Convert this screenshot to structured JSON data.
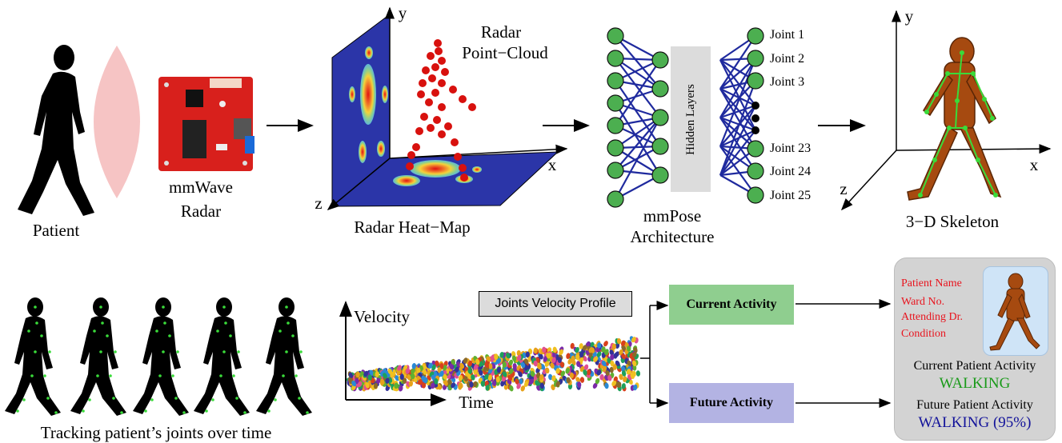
{
  "top": {
    "patient_label": "Patient",
    "radar_label_1": "mmWave",
    "radar_label_2": "Radar",
    "heatmap_label": "Radar Heat−Map",
    "pointcloud_label_1": "Radar",
    "pointcloud_label_2": "Point−Cloud",
    "axis_y": "y",
    "axis_x": "x",
    "axis_z": "z",
    "hidden_layers": "Hidden Layers",
    "joints_top": [
      "Joint 1",
      "Joint 2",
      "Joint 3"
    ],
    "joints_bottom": [
      "Joint 23",
      "Joint 24",
      "Joint 25"
    ],
    "arch_label_1": "mmPose",
    "arch_label_2": "Architecture",
    "skeleton_label": "3−D Skeleton"
  },
  "bottom": {
    "tracking_label": "Tracking patient’s joints over time",
    "velocity_label": "Velocity",
    "time_label": "Time",
    "profile_label": "Joints Velocity Profile",
    "current_activity": "Current Activity",
    "future_activity": "Future Activity"
  },
  "card": {
    "info_lines": [
      "Patient Name",
      "Ward No.",
      "Attending Dr.",
      "Condition"
    ],
    "current_title": "Current Patient Activity",
    "current_value": "WALKING",
    "future_title": "Future Patient Activity",
    "future_value": "WALKING (95%)"
  },
  "colors": {
    "node": "#4caf50",
    "edge": "#1f2a9e",
    "plane": "#2b35a8",
    "points": "#d8110e",
    "current_box": "#8fce8f",
    "future_box": "#b3b3e3",
    "skeleton": "#a64a10",
    "current_text": "#1a9a1a",
    "future_text": "#12129a"
  }
}
